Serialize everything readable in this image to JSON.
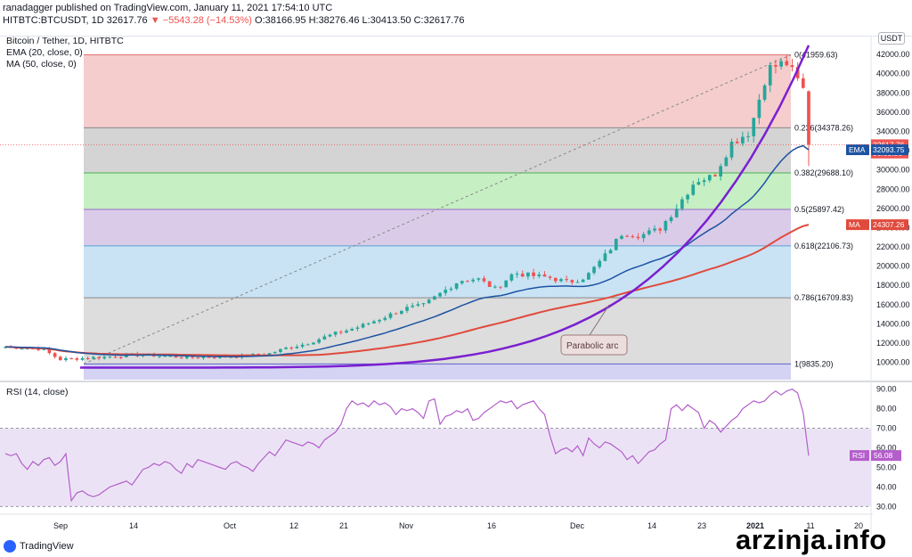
{
  "header": {
    "published_line": "ranadagger published on TradingView.com, January 11, 2021 17:54:10 UTC",
    "symbol": "HITBTC:BTCUSDT, 1D",
    "last": "32617.76",
    "change": "▼ −5543.28 (−14.53%)",
    "ohlc": "O:38166.95 H:38276.46 L:30413.50 C:32617.76"
  },
  "legend": {
    "title": "Bitcoin / Tether, 1D, HITBTC",
    "ema": "EMA (20, close, 0)",
    "ma": "MA (50, close, 0)"
  },
  "rsi_legend": "RSI (14, close)",
  "currency_badge": "USDT",
  "branding": {
    "tv": "TradingView",
    "watermark": "arzinja.info"
  },
  "colors": {
    "up": "#26a69a",
    "down": "#ef5350",
    "ema": "#1e53a2",
    "ma": "#e04a3c",
    "arc": "#7b1fd1",
    "rsi": "#b45ecb",
    "rsi_band": "#e6dcf2"
  },
  "chart_data": [
    {
      "type": "candlestick",
      "title": "Bitcoin / Tether, 1D, HITBTC",
      "x_ticks": [
        "Sep",
        "14",
        "Oct",
        "12",
        "21",
        "Nov",
        "16",
        "Dec",
        "14",
        "23",
        "2021",
        "11",
        "20"
      ],
      "y_ticks": [
        10000,
        12000,
        14000,
        16000,
        18000,
        20000,
        22000,
        24000,
        26000,
        28000,
        30000,
        32000,
        34000,
        36000,
        38000,
        40000,
        42000
      ],
      "ylim": [
        8200,
        43400
      ],
      "price_labels": [
        {
          "text": "32617.76",
          "value": 32617.76,
          "color": "#ef5350"
        },
        {
          "text": "06:05:56",
          "value": 31750,
          "color": "#ef5350"
        },
        {
          "text": "EMA",
          "value": 32093.75,
          "value_text": "32093.75",
          "color": "#1e53a2"
        },
        {
          "text": "MA",
          "value": 24307.26,
          "value_text": "24307.26",
          "color": "#e04a3c"
        }
      ],
      "fibonacci": [
        {
          "label": "0(41959.63)",
          "value": 41959.63
        },
        {
          "label": "0.236(34378.26)",
          "value": 34378.26
        },
        {
          "label": "0.382(29688.10)",
          "value": 29688.1
        },
        {
          "label": "0.5(25897.42)",
          "value": 25897.42
        },
        {
          "label": "0.618(22106.73)",
          "value": 22106.73
        },
        {
          "label": "0.786(16709.83)",
          "value": 16709.83
        },
        {
          "label": "1(9835.20)",
          "value": 9835.2
        }
      ],
      "annotation": "Parabolic arc",
      "indicators": [
        "EMA (20, close, 0)",
        "MA (50, close, 0)"
      ]
    },
    {
      "type": "line",
      "title": "RSI (14, close)",
      "y_ticks": [
        30,
        40,
        50,
        60,
        70,
        80,
        90
      ],
      "ylim": [
        27,
        93
      ],
      "bands": [
        30,
        70
      ],
      "last_value": {
        "label": "RSI",
        "value": 56.08,
        "value_text": "56.08"
      },
      "series": [
        {
          "values": [
            57,
            56,
            57,
            52,
            49,
            53,
            51,
            54,
            55,
            51,
            53,
            57,
            33,
            37,
            38,
            36,
            35,
            36,
            38,
            40,
            41,
            42,
            43,
            41,
            45,
            49,
            50,
            52,
            51,
            53,
            52,
            49,
            47,
            52,
            50,
            54,
            53,
            52,
            51,
            50,
            49,
            52,
            53,
            51,
            50,
            48,
            52,
            55,
            58,
            56,
            60,
            64,
            63,
            62,
            61,
            63,
            62,
            60,
            64,
            66,
            68,
            72,
            80,
            84,
            82,
            83,
            81,
            84,
            82,
            83,
            81,
            77,
            80,
            79,
            80,
            78,
            75,
            84,
            85,
            72,
            76,
            77,
            79,
            78,
            80,
            74,
            75,
            78,
            80,
            82,
            84,
            83,
            84,
            80,
            82,
            83,
            84,
            80,
            77,
            66,
            57,
            59,
            60,
            58,
            61,
            56,
            65,
            62,
            60,
            63,
            62,
            60,
            58,
            54,
            56,
            52,
            55,
            58,
            59,
            62,
            64,
            80,
            82,
            79,
            82,
            80,
            78,
            70,
            74,
            72,
            68,
            71,
            74,
            76,
            80,
            82,
            84,
            83,
            84,
            87,
            89,
            87,
            89,
            90,
            88,
            78,
            56
          ]
        }
      ]
    }
  ]
}
